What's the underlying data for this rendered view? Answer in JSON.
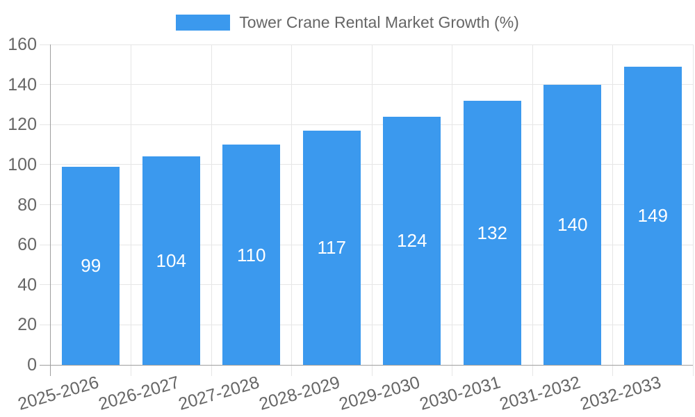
{
  "chart_data": {
    "type": "bar",
    "title": "Tower Crane Rental Market Growth (%)",
    "legend": {
      "label": "Tower Crane Rental Market Growth (%)",
      "position": "top"
    },
    "categories": [
      "2025-2026",
      "2026-2027",
      "2027-2028",
      "2028-2029",
      "2029-2030",
      "2030-2031",
      "2031-2032",
      "2032-2033"
    ],
    "values": [
      99,
      104,
      110,
      117,
      124,
      132,
      140,
      149
    ],
    "xlabel": "",
    "ylabel": "",
    "ylim": [
      0,
      160
    ],
    "yticks": [
      0,
      20,
      40,
      60,
      80,
      100,
      120,
      140,
      160
    ],
    "grid": true,
    "value_label_position": "inside-middle",
    "x_tick_rotation_deg": -16,
    "colors": {
      "bar": "#3b99ee",
      "text": "#666666",
      "grid": "#e6e6e6",
      "axis": "#9e9e9e",
      "value_text": "#ffffff",
      "background": "#ffffff"
    }
  }
}
